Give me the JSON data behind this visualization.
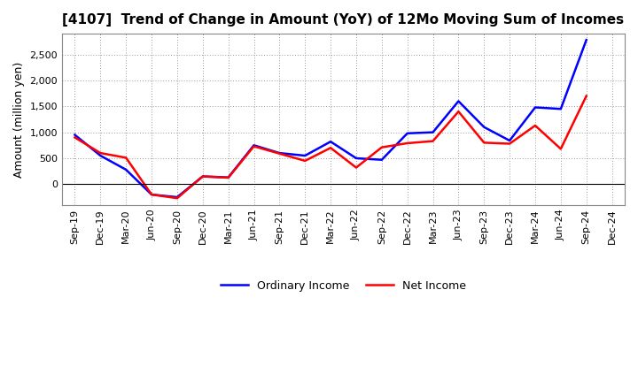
{
  "title": "[4107]  Trend of Change in Amount (YoY) of 12Mo Moving Sum of Incomes",
  "ylabel": "Amount (million yen)",
  "labels": [
    "Sep-19",
    "Dec-19",
    "Mar-20",
    "Jun-20",
    "Sep-20",
    "Dec-20",
    "Mar-21",
    "Jun-21",
    "Sep-21",
    "Dec-21",
    "Mar-22",
    "Jun-22",
    "Sep-22",
    "Dec-22",
    "Mar-23",
    "Jun-23",
    "Sep-23",
    "Dec-23",
    "Mar-24",
    "Jun-24",
    "Sep-24",
    "Dec-24"
  ],
  "ordinary_income": [
    950,
    550,
    280,
    -200,
    -250,
    150,
    130,
    750,
    600,
    550,
    820,
    500,
    470,
    980,
    1000,
    1600,
    1100,
    840,
    1480,
    1450,
    2780,
    null
  ],
  "net_income": [
    900,
    600,
    510,
    -200,
    -270,
    150,
    125,
    730,
    590,
    450,
    700,
    320,
    710,
    790,
    830,
    1400,
    800,
    780,
    1130,
    680,
    1700,
    null
  ],
  "ordinary_color": "#0000ff",
  "net_color": "#ff0000",
  "ylim_min": -400,
  "ylim_max": 2900,
  "yticks": [
    0,
    500,
    1000,
    1500,
    2000,
    2500
  ],
  "background_color": "#ffffff",
  "grid_color": "#999999",
  "title_fontsize": 11,
  "axis_fontsize": 9,
  "tick_fontsize": 8
}
